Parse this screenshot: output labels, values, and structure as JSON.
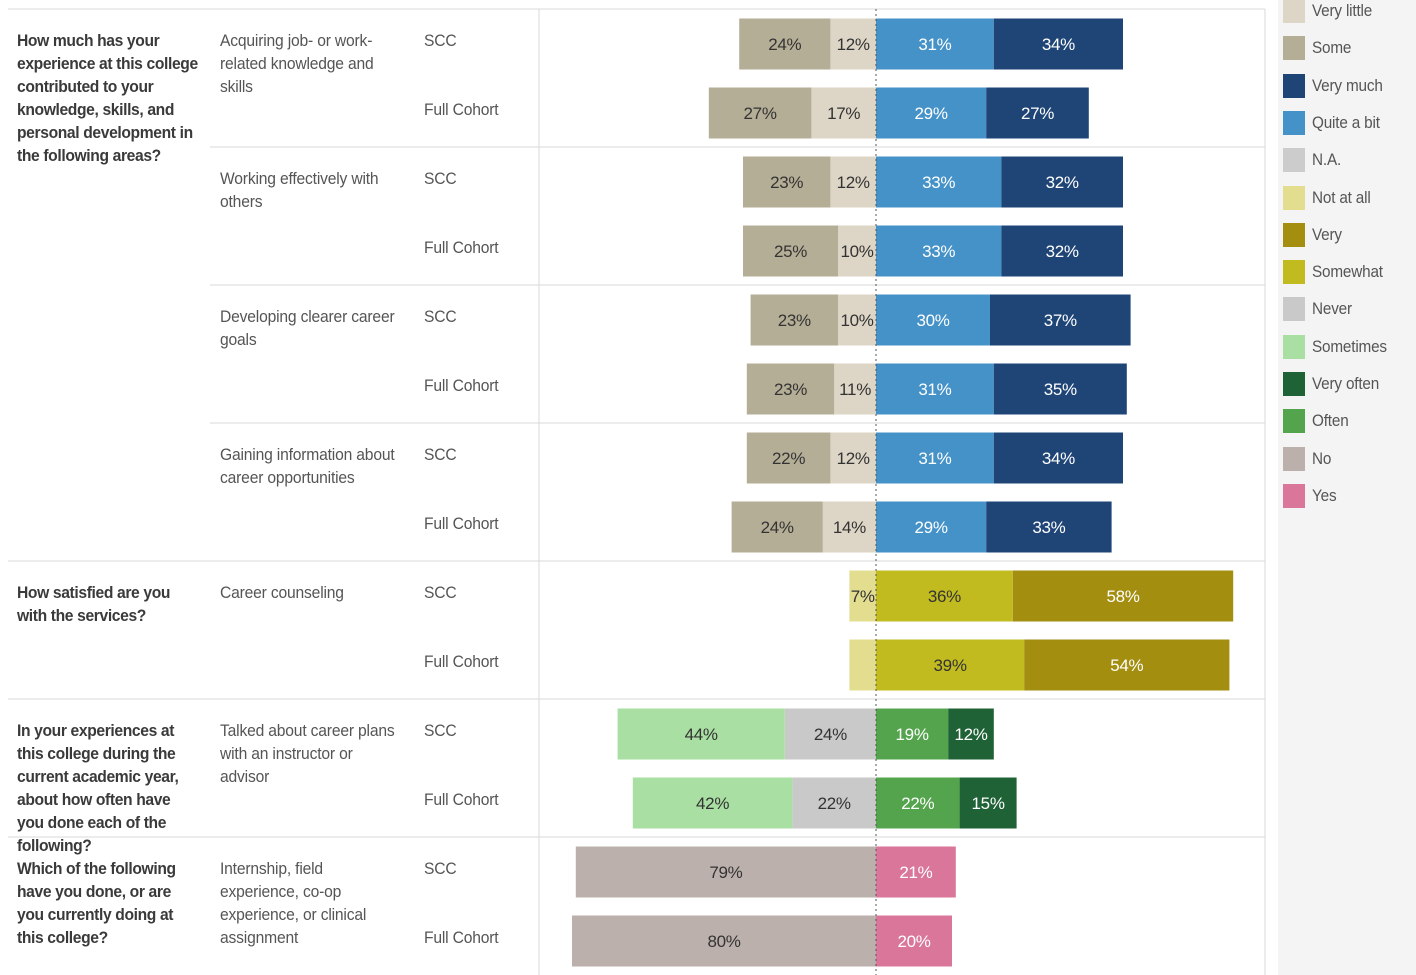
{
  "colors": {
    "Very little": "#ddd5c6",
    "Some": "#b5ae96",
    "Very much": "#1f4577",
    "Quite a bit": "#4592c9",
    "N.A.": "#cccccc",
    "Not at all": "#e3dd90",
    "Very": "#a38e10",
    "Somewhat": "#c2bb1f",
    "Never": "#c9c9c9",
    "Sometimes": "#a9dfa2",
    "Very often": "#1f6236",
    "Often": "#53a44c",
    "No": "#bbb0ab",
    "Yes": "#d9769a"
  },
  "legend": [
    "Very little",
    "Some",
    "Very much",
    "Quite a bit",
    "N.A.",
    "Not at all",
    "Very",
    "Somewhat",
    "Never",
    "Sometimes",
    "Very often",
    "Often",
    "No",
    "Yes"
  ],
  "chart_data": {
    "type": "bar",
    "orientation": "horizontal diverging stacked",
    "questions": [
      {
        "text": "How much has your experience at this college contributed to your knowledge, skills, and personal development in the following areas?",
        "items": [
          {
            "label": "Acquiring job- or work-related knowledge and skills",
            "rows": [
              {
                "group": "SCC",
                "negative": [
                  {
                    "cat": "Very little",
                    "value": 12
                  },
                  {
                    "cat": "Some",
                    "value": 24
                  }
                ],
                "positive": [
                  {
                    "cat": "Quite a bit",
                    "value": 31
                  },
                  {
                    "cat": "Very much",
                    "value": 34
                  }
                ]
              },
              {
                "group": "Full Cohort",
                "negative": [
                  {
                    "cat": "Very little",
                    "value": 17
                  },
                  {
                    "cat": "Some",
                    "value": 27
                  }
                ],
                "positive": [
                  {
                    "cat": "Quite a bit",
                    "value": 29
                  },
                  {
                    "cat": "Very much",
                    "value": 27
                  }
                ]
              }
            ]
          },
          {
            "label": "Working effectively with others",
            "rows": [
              {
                "group": "SCC",
                "negative": [
                  {
                    "cat": "Very little",
                    "value": 12
                  },
                  {
                    "cat": "Some",
                    "value": 23
                  }
                ],
                "positive": [
                  {
                    "cat": "Quite a bit",
                    "value": 33
                  },
                  {
                    "cat": "Very much",
                    "value": 32
                  }
                ]
              },
              {
                "group": "Full Cohort",
                "negative": [
                  {
                    "cat": "Very little",
                    "value": 10
                  },
                  {
                    "cat": "Some",
                    "value": 25
                  }
                ],
                "positive": [
                  {
                    "cat": "Quite a bit",
                    "value": 33
                  },
                  {
                    "cat": "Very much",
                    "value": 32
                  }
                ]
              }
            ]
          },
          {
            "label": "Developing clearer career goals",
            "rows": [
              {
                "group": "SCC",
                "negative": [
                  {
                    "cat": "Very little",
                    "value": 10
                  },
                  {
                    "cat": "Some",
                    "value": 23
                  }
                ],
                "positive": [
                  {
                    "cat": "Quite a bit",
                    "value": 30
                  },
                  {
                    "cat": "Very much",
                    "value": 37
                  }
                ]
              },
              {
                "group": "Full Cohort",
                "negative": [
                  {
                    "cat": "Very little",
                    "value": 11
                  },
                  {
                    "cat": "Some",
                    "value": 23
                  }
                ],
                "positive": [
                  {
                    "cat": "Quite a bit",
                    "value": 31
                  },
                  {
                    "cat": "Very much",
                    "value": 35
                  }
                ]
              }
            ]
          },
          {
            "label": "Gaining information about career opportunities",
            "rows": [
              {
                "group": "SCC",
                "negative": [
                  {
                    "cat": "Very little",
                    "value": 12
                  },
                  {
                    "cat": "Some",
                    "value": 22
                  }
                ],
                "positive": [
                  {
                    "cat": "Quite a bit",
                    "value": 31
                  },
                  {
                    "cat": "Very much",
                    "value": 34
                  }
                ]
              },
              {
                "group": "Full Cohort",
                "negative": [
                  {
                    "cat": "Very little",
                    "value": 14
                  },
                  {
                    "cat": "Some",
                    "value": 24
                  }
                ],
                "positive": [
                  {
                    "cat": "Quite a bit",
                    "value": 29
                  },
                  {
                    "cat": "Very much",
                    "value": 33
                  }
                ]
              }
            ]
          }
        ]
      },
      {
        "text": "How satisfied are you with the services?",
        "items": [
          {
            "label": "Career counseling",
            "rows": [
              {
                "group": "SCC",
                "negative": [
                  {
                    "cat": "Not at all",
                    "value": 7
                  }
                ],
                "positive": [
                  {
                    "cat": "Somewhat",
                    "value": 36
                  },
                  {
                    "cat": "Very",
                    "value": 58
                  }
                ]
              },
              {
                "group": "Full Cohort",
                "negative": [
                  {
                    "cat": "Not at all",
                    "value": 7,
                    "unlabeled": true
                  }
                ],
                "positive": [
                  {
                    "cat": "Somewhat",
                    "value": 39
                  },
                  {
                    "cat": "Very",
                    "value": 54
                  }
                ]
              }
            ]
          }
        ]
      },
      {
        "text": "In your experiences at this college during the current academic year, about how often have you done each of the following?",
        "items": [
          {
            "label": "Talked about career plans with an instructor or advisor",
            "rows": [
              {
                "group": "SCC",
                "negative": [
                  {
                    "cat": "Never",
                    "value": 24
                  },
                  {
                    "cat": "Sometimes",
                    "value": 44
                  }
                ],
                "positive": [
                  {
                    "cat": "Often",
                    "value": 19
                  },
                  {
                    "cat": "Very often",
                    "value": 12
                  }
                ]
              },
              {
                "group": "Full Cohort",
                "negative": [
                  {
                    "cat": "Never",
                    "value": 22
                  },
                  {
                    "cat": "Sometimes",
                    "value": 42
                  }
                ],
                "positive": [
                  {
                    "cat": "Often",
                    "value": 22
                  },
                  {
                    "cat": "Very often",
                    "value": 15
                  }
                ]
              }
            ]
          }
        ]
      },
      {
        "text": "Which of the following have you done, or are you currently doing at this college?",
        "items": [
          {
            "label": "Internship, field experience, co-op experience, or clinical assignment",
            "rows": [
              {
                "group": "SCC",
                "negative": [
                  {
                    "cat": "No",
                    "value": 79
                  }
                ],
                "positive": [
                  {
                    "cat": "Yes",
                    "value": 21
                  }
                ]
              },
              {
                "group": "Full Cohort",
                "negative": [
                  {
                    "cat": "No",
                    "value": 80
                  }
                ],
                "positive": [
                  {
                    "cat": "Yes",
                    "value": 20
                  }
                ]
              }
            ]
          }
        ]
      }
    ]
  }
}
